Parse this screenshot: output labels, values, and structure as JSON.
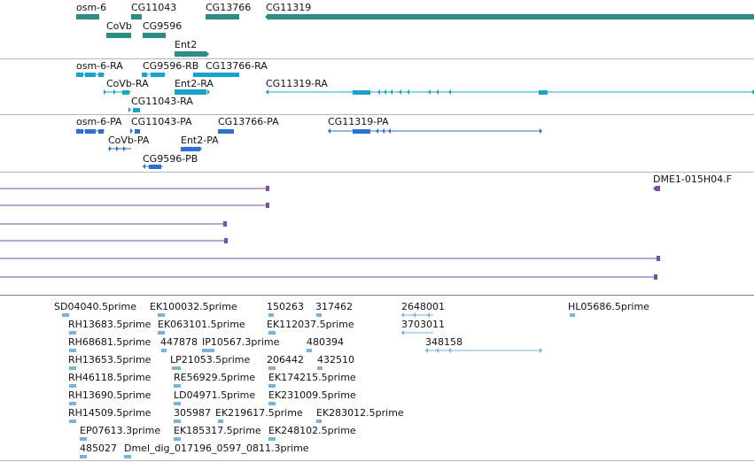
{
  "colors": {
    "gene": "#2e8b82",
    "transcript": "#1aa3c8",
    "protein": "#2f6fd0",
    "clone": "#7a4ea6",
    "est": "#7ab3d6",
    "divider": "#b8b8b8"
  },
  "tracks": {
    "genes": {
      "labels": [
        "osm-6",
        "CG11043",
        "CG13766",
        "CG11319",
        "CoVb",
        "CG9596",
        "Ent2"
      ]
    },
    "transcripts": {
      "labels": [
        "osm-6-RA",
        "CG9596-RB",
        "CG13766-RA",
        "CoVb-RA",
        "Ent2-RA",
        "CG11319-RA",
        "CG11043-RA"
      ]
    },
    "proteins": {
      "labels": [
        "osm-6-PA",
        "CG11043-PA",
        "CG13766-PA",
        "CG11319-PA",
        "CoVb-PA",
        "Ent2-PA",
        "CG9596-PB"
      ]
    },
    "clones": {
      "labels": [
        "DME1-015H04.F"
      ]
    },
    "ests": {
      "labels": [
        "SD04040.5prime",
        "EK100032.5prime",
        "150263",
        "317462",
        "2648001",
        "HL05686.5prime",
        "RH13683.5prime",
        "EK063101.5prime",
        "EK112037.5prime",
        "3703011",
        "RH68681.5prime",
        "447878",
        "IP10567.3prime",
        "480394",
        "348158",
        "RH13653.5prime",
        "LP21053.5prime",
        "206442",
        "432510",
        "RH46118.5prime",
        "RE56929.5prime",
        "EK174215.5prime",
        "RH13690.5prime",
        "LD04971.5prime",
        "EK231009.5prime",
        "RH14509.5prime",
        "305987",
        "EK219617.5prime",
        "EK283012.5prime",
        "EP07613.3prime",
        "EK185317.5prime",
        "EK248102.5prime",
        "485027",
        "Dmel_dig_017196_0597_0811.3prime"
      ]
    }
  }
}
